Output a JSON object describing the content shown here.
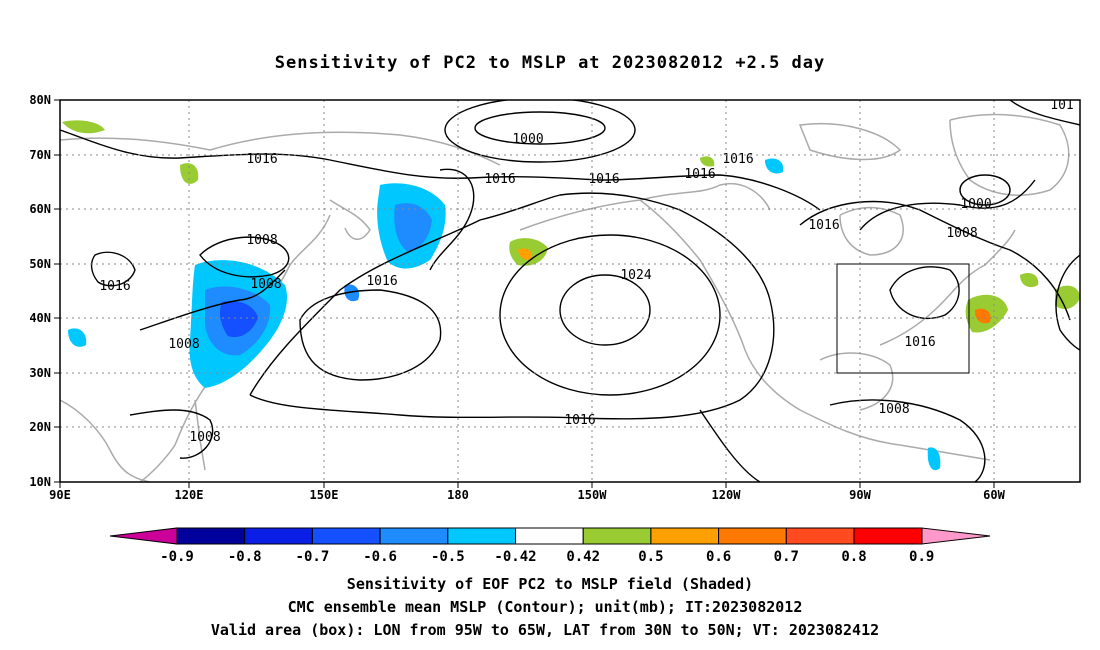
{
  "title": "Sensitivity of PC2 to MSLP at 2023082012 +2.5 day",
  "lat_labels": [
    "80N",
    "70N",
    "60N",
    "50N",
    "40N",
    "30N",
    "20N",
    "10N"
  ],
  "lon_labels": [
    "90E",
    "120E",
    "150E",
    "180",
    "150W",
    "120W",
    "90W",
    "60W"
  ],
  "contour_labels": [
    "1000",
    "1016",
    "1016",
    "1016",
    "1016",
    "1016",
    "1008",
    "1016",
    "1008",
    "1016",
    "1024",
    "1016",
    "1000",
    "1008",
    "1016",
    "1008",
    "1008",
    "1016",
    "1008",
    "101"
  ],
  "colorbar": {
    "labels": [
      "-0.9",
      "-0.8",
      "-0.7",
      "-0.6",
      "-0.5",
      "-0.42",
      "0.42",
      "0.5",
      "0.6",
      "0.7",
      "0.8",
      "0.9"
    ],
    "colors": [
      "#00009b",
      "#0a1ee6",
      "#1450ff",
      "#1e8cff",
      "#00c8ff",
      "#ffffff",
      "#99cc33",
      "#ffa000",
      "#ff7800",
      "#ff4b1e",
      "#ff0000"
    ],
    "low_arrow_color": "#cc0099",
    "high_arrow_color": "#ff99cc"
  },
  "captions": [
    "Sensitivity of EOF PC2 to MSLP field (Shaded)",
    "CMC ensemble mean MSLP (Contour); unit(mb); IT:2023082012",
    "Valid area (box): LON from 95W to 65W, LAT from 30N to 50N; VT: 2023082412"
  ],
  "map_data": {
    "lon_range": [
      90,
      305
    ],
    "lat_range": [
      10,
      80
    ],
    "valid_box": {
      "lon": [
        265,
        295
      ],
      "lat": [
        30,
        50
      ]
    },
    "contour_interval_mb": 8
  }
}
